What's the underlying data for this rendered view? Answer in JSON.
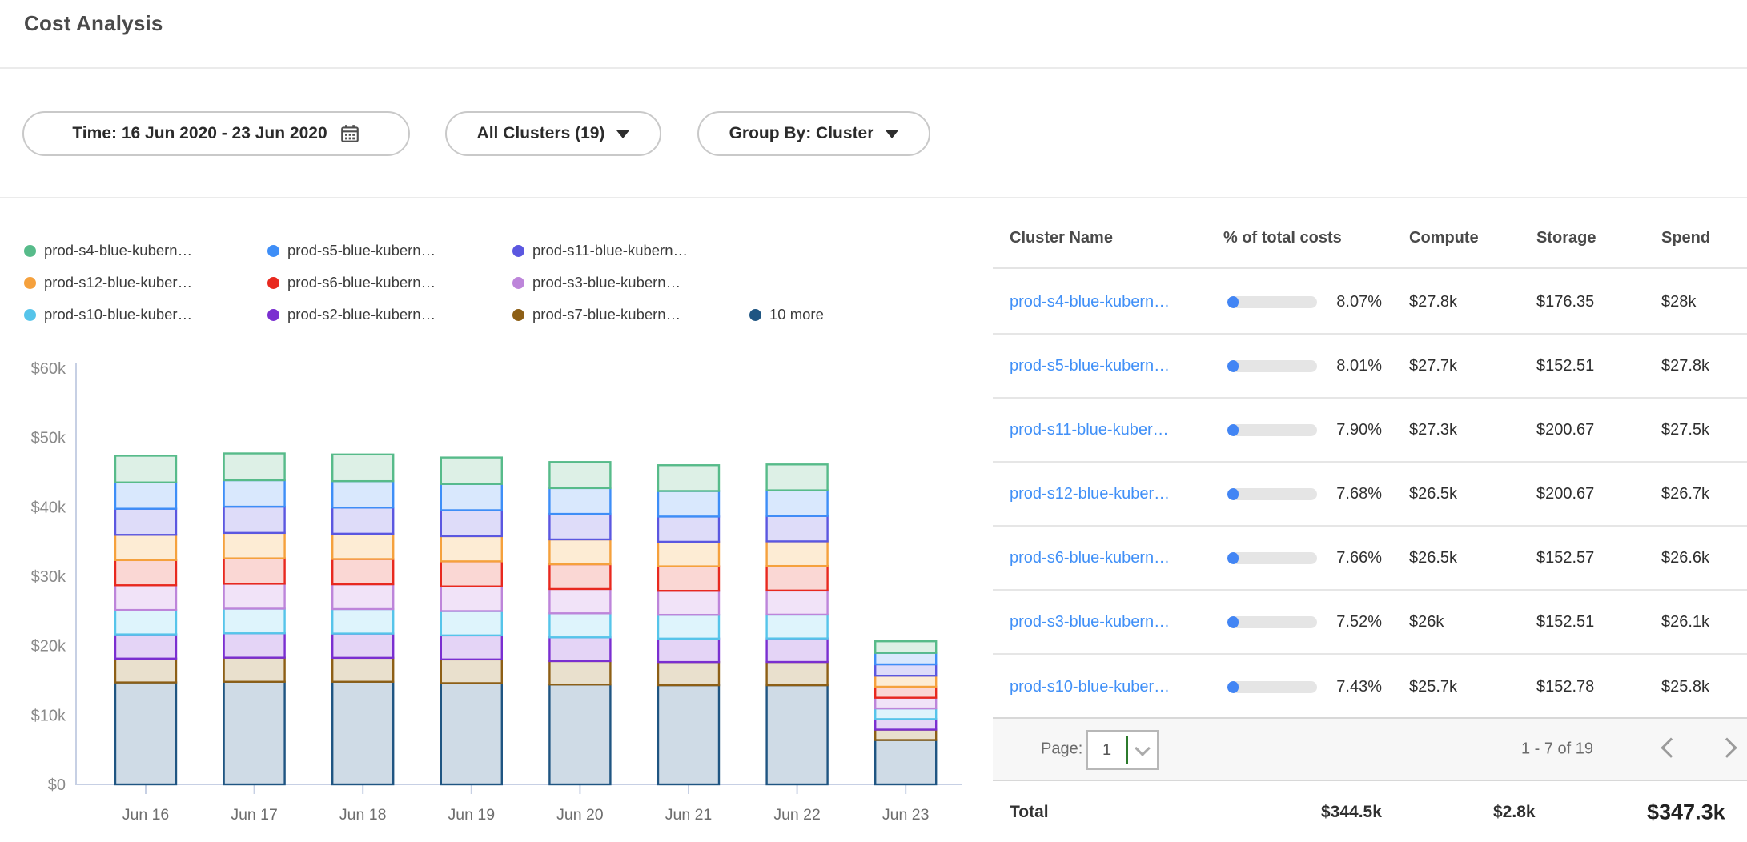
{
  "header": {
    "title": "Cost Analysis"
  },
  "filters": {
    "time": {
      "label": "Time: 16 Jun 2020 - 23 Jun 2020",
      "icon": "calendar-icon"
    },
    "clusters": {
      "label": "All Clusters (19)",
      "icon": "caret-down-icon"
    },
    "group_by": {
      "label": "Group By: Cluster",
      "icon": "caret-down-icon"
    }
  },
  "legend": {
    "items": [
      {
        "label": "prod-s4-blue-kubern…",
        "color": "#57bb8a",
        "row": 0,
        "col": 0
      },
      {
        "label": "prod-s5-blue-kubern…",
        "color": "#3e8ef7",
        "row": 0,
        "col": 1
      },
      {
        "label": "prod-s11-blue-kubern…",
        "color": "#5b57e0",
        "row": 0,
        "col": 2
      },
      {
        "label": "prod-s12-blue-kuber…",
        "color": "#f5a13d",
        "row": 1,
        "col": 0
      },
      {
        "label": "prod-s6-blue-kubern…",
        "color": "#e8291f",
        "row": 1,
        "col": 1
      },
      {
        "label": "prod-s3-blue-kubern…",
        "color": "#bd85da",
        "row": 1,
        "col": 2
      },
      {
        "label": "prod-s10-blue-kuber…",
        "color": "#56c4ea",
        "row": 2,
        "col": 0
      },
      {
        "label": "prod-s2-blue-kubern…",
        "color": "#7a2fd0",
        "row": 2,
        "col": 1
      },
      {
        "label": "prod-s7-blue-kubern…",
        "color": "#8d5f16",
        "row": 2,
        "col": 2
      },
      {
        "label": "10 more",
        "color": "#1f5582",
        "row": 2,
        "col": 3
      }
    ]
  },
  "chart_data": {
    "type": "bar",
    "stacked": true,
    "grid": false,
    "legend_position": "top",
    "x": [
      "Jun 16",
      "Jun 17",
      "Jun 18",
      "Jun 19",
      "Jun 20",
      "Jun 21",
      "Jun 22",
      "Jun 23"
    ],
    "ytick_labels": [
      "$0",
      "$10k",
      "$20k",
      "$30k",
      "$40k",
      "$50k",
      "$60k"
    ],
    "ylim_thousands": [
      0,
      60
    ],
    "values_unit": "USD thousands",
    "series": [
      {
        "name": "10 more",
        "color": "#1f5582",
        "fill": "#cfdbe6",
        "values": [
          14.7,
          14.8,
          14.8,
          14.6,
          14.4,
          14.3,
          14.3,
          6.4
        ]
      },
      {
        "name": "prod-s7-blue-kubern…",
        "color": "#8d5f16",
        "fill": "#e9e0cd",
        "values": [
          3.44,
          3.47,
          3.45,
          3.42,
          3.38,
          3.34,
          3.35,
          1.5
        ]
      },
      {
        "name": "prod-s2-blue-kubern…",
        "color": "#7a2fd0",
        "fill": "#e4d4f6",
        "values": [
          3.48,
          3.51,
          3.49,
          3.46,
          3.42,
          3.38,
          3.39,
          1.52
        ]
      },
      {
        "name": "prod-s10-blue-kuber…",
        "color": "#56c4ea",
        "fill": "#def4fc",
        "values": [
          3.52,
          3.55,
          3.53,
          3.5,
          3.46,
          3.42,
          3.43,
          1.53
        ]
      },
      {
        "name": "prod-s3-blue-kubern…",
        "color": "#bd85da",
        "fill": "#f1e3f8",
        "values": [
          3.56,
          3.59,
          3.57,
          3.55,
          3.5,
          3.46,
          3.47,
          1.55
        ]
      },
      {
        "name": "prod-s6-blue-kubern…",
        "color": "#e8291f",
        "fill": "#fad7d4",
        "values": [
          3.63,
          3.66,
          3.64,
          3.62,
          3.57,
          3.53,
          3.54,
          1.58
        ]
      },
      {
        "name": "prod-s12-blue-kuber…",
        "color": "#f5a13d",
        "fill": "#fdecd4",
        "values": [
          3.64,
          3.67,
          3.65,
          3.63,
          3.58,
          3.54,
          3.55,
          1.59
        ]
      },
      {
        "name": "prod-s11-blue-kubern…",
        "color": "#5b57e0",
        "fill": "#dedcf9",
        "values": [
          3.76,
          3.78,
          3.77,
          3.74,
          3.68,
          3.64,
          3.66,
          1.64
        ]
      },
      {
        "name": "prod-s5-blue-kubern…",
        "color": "#3e8ef7",
        "fill": "#d9e8fd",
        "values": [
          3.8,
          3.82,
          3.81,
          3.78,
          3.72,
          3.68,
          3.7,
          1.65
        ]
      },
      {
        "name": "prod-s4-blue-kubern…",
        "color": "#57bb8a",
        "fill": "#ddf0e6",
        "values": [
          3.84,
          3.86,
          3.85,
          3.82,
          3.76,
          3.72,
          3.73,
          1.67
        ]
      }
    ]
  },
  "table": {
    "columns": [
      "Cluster Name",
      "% of total costs",
      "Compute",
      "Storage",
      "Spend"
    ],
    "rows": [
      {
        "name": "prod-s4-blue-kubern…",
        "pct": "8.07%",
        "pct_value": 8.07,
        "compute": "$27.8k",
        "storage": "$176.35",
        "spend": "$28k"
      },
      {
        "name": "prod-s5-blue-kubern…",
        "pct": "8.01%",
        "pct_value": 8.01,
        "compute": "$27.7k",
        "storage": "$152.51",
        "spend": "$27.8k"
      },
      {
        "name": "prod-s11-blue-kuber…",
        "pct": "7.90%",
        "pct_value": 7.9,
        "compute": "$27.3k",
        "storage": "$200.67",
        "spend": "$27.5k"
      },
      {
        "name": "prod-s12-blue-kuber…",
        "pct": "7.68%",
        "pct_value": 7.68,
        "compute": "$26.5k",
        "storage": "$200.67",
        "spend": "$26.7k"
      },
      {
        "name": "prod-s6-blue-kubern…",
        "pct": "7.66%",
        "pct_value": 7.66,
        "compute": "$26.5k",
        "storage": "$152.57",
        "spend": "$26.6k"
      },
      {
        "name": "prod-s3-blue-kubern…",
        "pct": "7.52%",
        "pct_value": 7.52,
        "compute": "$26k",
        "storage": "$152.51",
        "spend": "$26.1k"
      },
      {
        "name": "prod-s10-blue-kuber…",
        "pct": "7.43%",
        "pct_value": 7.43,
        "compute": "$25.7k",
        "storage": "$152.78",
        "spend": "$25.8k"
      }
    ],
    "pagination": {
      "page_label": "Page:",
      "page": "1",
      "range": "1 - 7 of 19"
    },
    "total": {
      "label": "Total",
      "compute": "$344.5k",
      "storage": "$2.8k",
      "spend": "$347.3k"
    }
  },
  "colors": {
    "link": "#4190f7",
    "progress_fill": "#4285f4",
    "progress_track": "#e5e5e5",
    "select_caret_green": "#2c7a2c",
    "axis_line": "#c7d0e4"
  }
}
